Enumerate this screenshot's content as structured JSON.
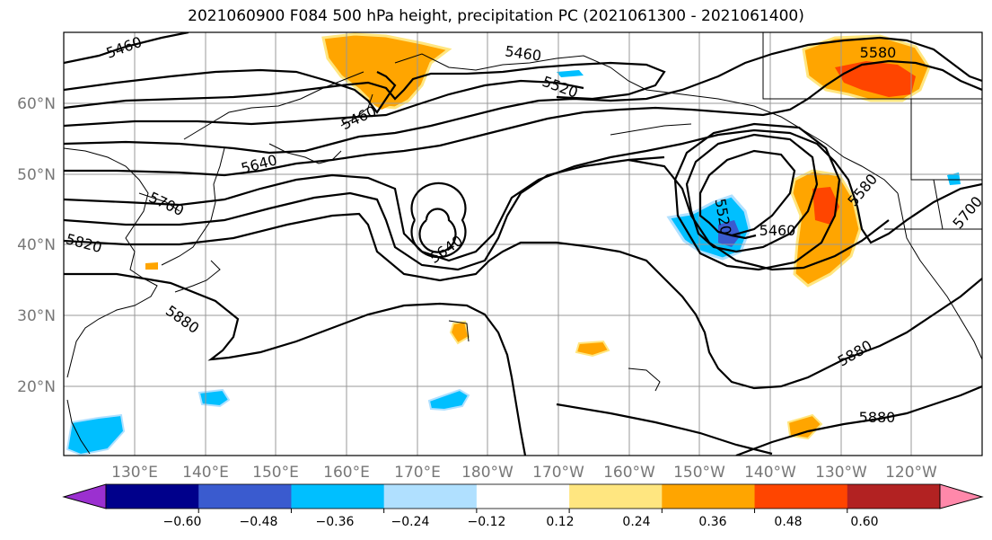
{
  "title": "2021060900 F084 500 hPa height, precipitation PC (2021061300 - 2021061400)",
  "lat_labels": [
    "60°N",
    "50°N",
    "40°N",
    "30°N",
    "20°N"
  ],
  "lon_labels": [
    "130°E",
    "140°E",
    "150°E",
    "160°E",
    "170°E",
    "180°W",
    "170°W",
    "160°W",
    "150°W",
    "140°W",
    "130°W",
    "120°W"
  ],
  "contour_labels": [
    "5460",
    "5460",
    "5520",
    "5460",
    "5640",
    "5700",
    "5820",
    "5880",
    "5640",
    "5520",
    "5460",
    "5580",
    "5580",
    "5880",
    "5880",
    "5700"
  ],
  "colorbar": {
    "colors": [
      "#9b30d0",
      "#00008b",
      "#3a5bcf",
      "#00bfff",
      "#b0e0ff",
      "#ffffff",
      "#ffe680",
      "#ffa500",
      "#ff4500",
      "#b22222",
      "#ff88aa"
    ],
    "tick_labels": [
      "−0.60",
      "−0.48",
      "−0.36",
      "−0.24",
      "−0.12",
      "0.12",
      "0.24",
      "0.36",
      "0.48",
      "0.60"
    ]
  }
}
